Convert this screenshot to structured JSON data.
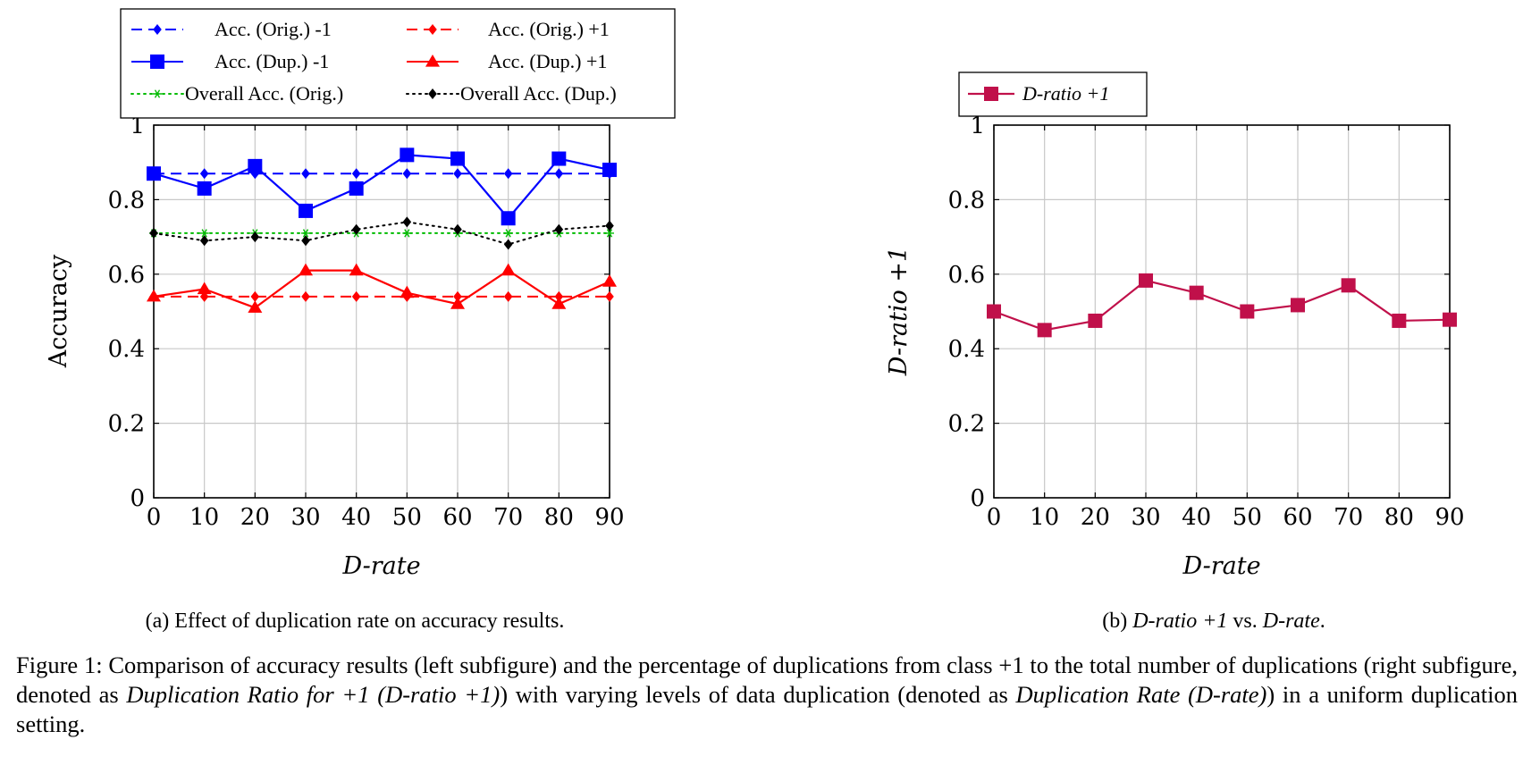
{
  "chart_data": [
    {
      "type": "line",
      "id": "a",
      "x": [
        0,
        10,
        20,
        30,
        40,
        50,
        60,
        70,
        80,
        90
      ],
      "ylim": [
        0,
        1
      ],
      "xlim": [
        0,
        90
      ],
      "xlabel": "D-rate",
      "ylabel": "Accuracy",
      "yticks": [
        "0",
        "0.2",
        "0.4",
        "0.6",
        "0.8",
        "1"
      ],
      "xticks": [
        "0",
        "10",
        "20",
        "30",
        "40",
        "50",
        "60",
        "70",
        "80",
        "90"
      ],
      "grid": true,
      "legend_position": "above",
      "series": [
        {
          "name": "Acc. (Orig.) -1",
          "color": "#0000ff",
          "style": "dashed",
          "marker": "diamond",
          "values": [
            0.87,
            0.87,
            0.87,
            0.87,
            0.87,
            0.87,
            0.87,
            0.87,
            0.87,
            0.87
          ]
        },
        {
          "name": "Acc. (Orig.) +1",
          "color": "#ff0000",
          "style": "dashed",
          "marker": "diamond",
          "values": [
            0.54,
            0.54,
            0.54,
            0.54,
            0.54,
            0.54,
            0.54,
            0.54,
            0.54,
            0.54
          ]
        },
        {
          "name": "Acc. (Dup.) -1",
          "color": "#0000ff",
          "style": "solid",
          "marker": "square",
          "values": [
            0.87,
            0.83,
            0.89,
            0.77,
            0.83,
            0.92,
            0.91,
            0.75,
            0.91,
            0.88
          ]
        },
        {
          "name": "Acc. (Dup.) +1",
          "color": "#ff0000",
          "style": "solid",
          "marker": "triangle",
          "values": [
            0.54,
            0.56,
            0.51,
            0.61,
            0.61,
            0.55,
            0.52,
            0.61,
            0.52,
            0.58
          ]
        },
        {
          "name": "Overall Acc. (Orig.)",
          "color": "#00bb00",
          "style": "dotted",
          "marker": "star",
          "values": [
            0.71,
            0.71,
            0.71,
            0.71,
            0.71,
            0.71,
            0.71,
            0.71,
            0.71,
            0.71
          ]
        },
        {
          "name": "Overall Acc. (Dup.)",
          "color": "#000000",
          "style": "dotted",
          "marker": "diamond",
          "values": [
            0.71,
            0.69,
            0.7,
            0.69,
            0.72,
            0.74,
            0.72,
            0.68,
            0.72,
            0.73
          ]
        }
      ],
      "subcaption": "(a) Effect of duplication rate on accuracy results."
    },
    {
      "type": "line",
      "id": "b",
      "x": [
        0,
        10,
        20,
        30,
        40,
        50,
        60,
        70,
        80,
        90
      ],
      "ylim": [
        0,
        1
      ],
      "xlim": [
        0,
        90
      ],
      "xlabel": "D-rate",
      "ylabel": "D-ratio +1",
      "yticks": [
        "0",
        "0.2",
        "0.4",
        "0.6",
        "0.8",
        "1"
      ],
      "xticks": [
        "0",
        "10",
        "20",
        "30",
        "40",
        "50",
        "60",
        "70",
        "80",
        "90"
      ],
      "grid": true,
      "legend_position": "above",
      "series": [
        {
          "name": "D-ratio +1",
          "color": "#c0104a",
          "style": "solid",
          "marker": "square",
          "values": [
            0.5,
            0.45,
            0.475,
            0.583,
            0.55,
            0.5,
            0.517,
            0.57,
            0.475,
            0.478
          ]
        }
      ],
      "subcaption_parts": [
        "(b) ",
        "D-ratio +1",
        " vs. ",
        "D-rate",
        "."
      ]
    }
  ],
  "caption": {
    "p1": "Figure 1: Comparison of accuracy results (left subfigure) and the percentage of duplications from class +1 to the total number of duplications (right subfigure, denoted as ",
    "i1": "Duplication Ratio for +1 (D-ratio +1)",
    "p2": ") with varying levels of data duplication (denoted as ",
    "i2": "Duplication Rate (D-rate)",
    "p3": ") in a uniform duplication setting."
  }
}
